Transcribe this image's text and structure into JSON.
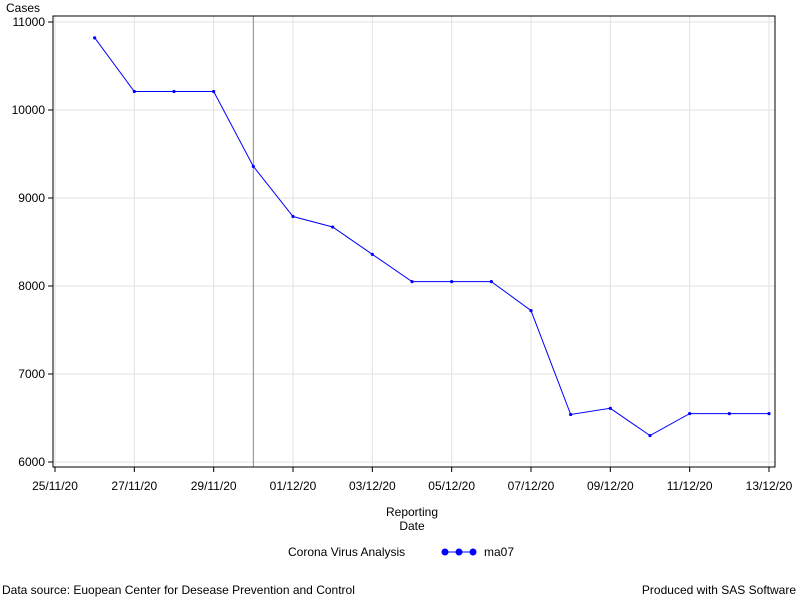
{
  "chart_data": {
    "type": "line",
    "ylabel": "Cases",
    "xlabel_line1": "Reporting",
    "xlabel_line2": "Date",
    "ylim": [
      6000,
      11000
    ],
    "yticks": [
      6000,
      7000,
      8000,
      9000,
      10000,
      11000
    ],
    "ytick_labels": [
      "6000",
      "7000",
      "8000",
      "9000",
      "10000",
      "11000"
    ],
    "xlim": [
      "2020-11-25",
      "2020-12-13"
    ],
    "xticks": [
      "2020-11-25",
      "2020-11-27",
      "2020-11-29",
      "2020-12-01",
      "2020-12-03",
      "2020-12-05",
      "2020-12-07",
      "2020-12-09",
      "2020-12-11",
      "2020-12-13"
    ],
    "xtick_labels": [
      "25/11/20",
      "27/11/20",
      "29/11/20",
      "01/12/20",
      "03/12/20",
      "05/12/20",
      "07/12/20",
      "09/12/20",
      "11/12/20",
      "13/12/20"
    ],
    "reference_line_x": "2020-11-30",
    "grid": true,
    "legend_title": "Corona Virus Analysis",
    "series": [
      {
        "name": "ma07",
        "color": "#0000ff",
        "x": [
          "2020-11-26",
          "2020-11-27",
          "2020-11-28",
          "2020-11-29",
          "2020-11-30",
          "2020-12-01",
          "2020-12-02",
          "2020-12-03",
          "2020-12-04",
          "2020-12-05",
          "2020-12-06",
          "2020-12-07",
          "2020-12-08",
          "2020-12-09",
          "2020-12-10",
          "2020-12-11",
          "2020-12-12",
          "2020-12-13"
        ],
        "y": [
          10820,
          10210,
          10210,
          10210,
          9360,
          8790,
          8670,
          8360,
          8050,
          8050,
          8050,
          7720,
          6540,
          6610,
          6300,
          6550,
          6550,
          6550
        ]
      }
    ]
  },
  "footer": {
    "source": "Data source: Euopean Center for Desease Prevention and Control",
    "produced": "Produced with SAS Software"
  }
}
